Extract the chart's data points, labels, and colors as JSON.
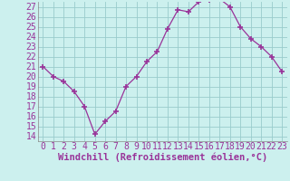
{
  "x": [
    0,
    1,
    2,
    3,
    4,
    5,
    6,
    7,
    8,
    9,
    10,
    11,
    12,
    13,
    14,
    15,
    16,
    17,
    18,
    19,
    20,
    21,
    22,
    23
  ],
  "y": [
    21,
    20,
    19.5,
    18.5,
    17,
    14.2,
    15.5,
    16.5,
    19,
    20,
    21.5,
    22.5,
    24.8,
    26.7,
    26.5,
    27.5,
    27.7,
    27.8,
    27,
    25,
    23.8,
    23,
    22,
    20.5
  ],
  "line_color": "#993399",
  "marker_color": "#993399",
  "bg_color": "#ccf0ee",
  "grid_color": "#99cccc",
  "xlabel": "Windchill (Refroidissement éolien,°C)",
  "xlim": [
    -0.5,
    23.5
  ],
  "ylim": [
    13.5,
    27.5
  ],
  "yticks": [
    14,
    15,
    16,
    17,
    18,
    19,
    20,
    21,
    22,
    23,
    24,
    25,
    26,
    27
  ],
  "xticks": [
    0,
    1,
    2,
    3,
    4,
    5,
    6,
    7,
    8,
    9,
    10,
    11,
    12,
    13,
    14,
    15,
    16,
    17,
    18,
    19,
    20,
    21,
    22,
    23
  ],
  "label_fontsize": 7.5,
  "tick_fontsize": 7
}
